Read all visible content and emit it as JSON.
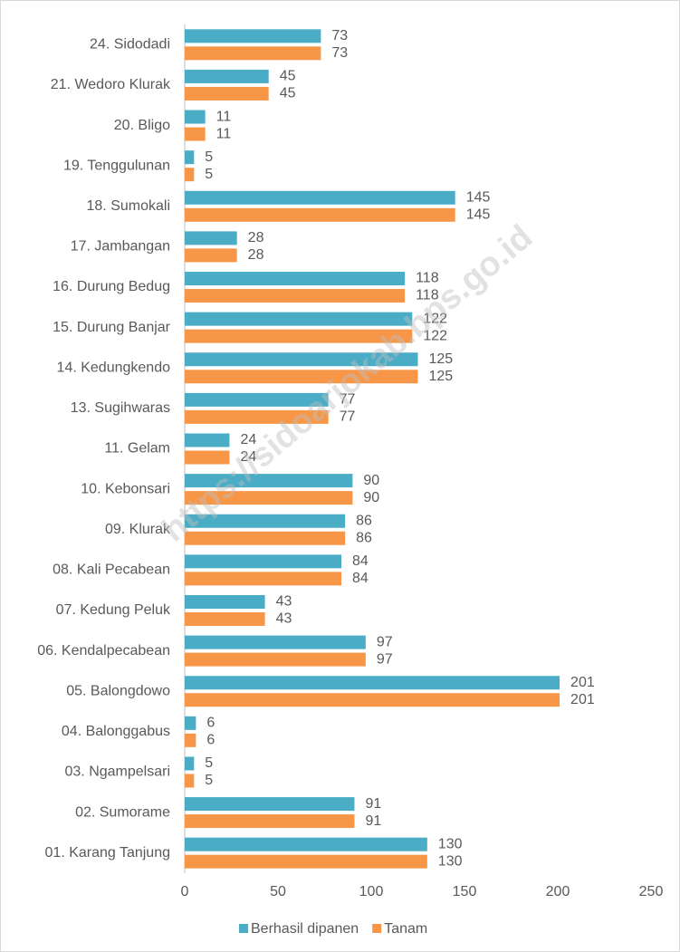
{
  "chart_data": {
    "type": "barh",
    "watermark": "https://sidoarjokab.bps.go.id",
    "categories": [
      "24. Sidodadi",
      "21. Wedoro Klurak",
      "20. Bligo",
      "19. Tenggulunan",
      "18. Sumokali",
      "17. Jambangan",
      "16. Durung Bedug",
      "15. Durung Banjar",
      "14. Kedungkendo",
      "13. Sugihwaras",
      "11. Gelam",
      "10. Kebonsari",
      "09. Klurak",
      "08. Kali Pecabean",
      "07. Kedung Peluk",
      "06. Kendalpecabean",
      "05. Balongdowo",
      "04. Balonggabus",
      "03. Ngampelsari",
      "02. Sumorame",
      "01. Karang Tanjung"
    ],
    "series": [
      {
        "name": "Berhasil dipanen",
        "color": "#4bacc6",
        "values": [
          73,
          45,
          11,
          5,
          145,
          28,
          118,
          122,
          125,
          77,
          24,
          90,
          86,
          84,
          43,
          97,
          201,
          6,
          5,
          91,
          130
        ]
      },
      {
        "name": "Tanam",
        "color": "#f79646",
        "values": [
          73,
          45,
          11,
          5,
          145,
          28,
          118,
          122,
          125,
          77,
          24,
          90,
          86,
          84,
          43,
          97,
          201,
          6,
          5,
          91,
          130
        ]
      }
    ],
    "xlim": [
      0,
      250
    ],
    "xticks": [
      0,
      50,
      100,
      150,
      200,
      250
    ],
    "legend": "bottom"
  }
}
